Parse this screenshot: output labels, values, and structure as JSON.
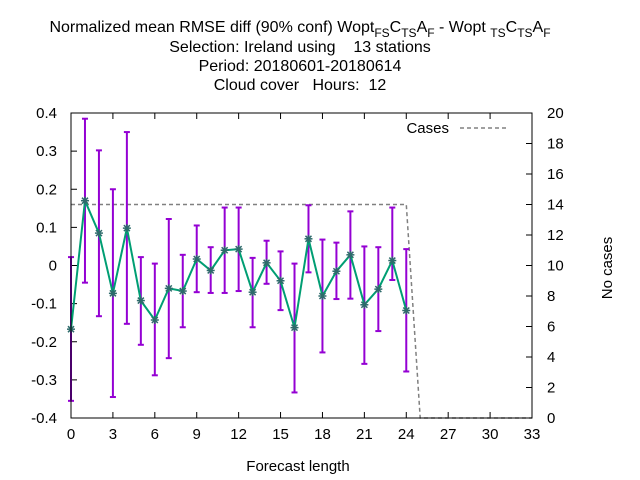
{
  "chart_data": {
    "type": "line",
    "title": {
      "line1_prefix": "Normalized mean RMSE diff (90% conf) Wopt",
      "sub1": "FS",
      "mid1": "C",
      "sub2": "TS",
      "mid2": "A",
      "sub3": "F",
      "line1_sep": " - Wopt ",
      "sub4": "TS",
      "mid3": "C",
      "sub5": "TS",
      "mid4": "A",
      "sub6": "F",
      "line2": "Selection: Ireland using    13 stations",
      "line3": "Period: 20180601-20180614",
      "line4": "Cloud cover   Hours:  12"
    },
    "xlabel": "Forecast length",
    "ylabel_right": "No cases",
    "xlim": [
      0,
      33
    ],
    "ylim": [
      -0.4,
      0.4
    ],
    "y2lim": [
      0,
      20
    ],
    "xticks": [
      "0",
      "3",
      "6",
      "9",
      "12",
      "15",
      "18",
      "21",
      "24",
      "27",
      "30",
      "33"
    ],
    "yticks": [
      "-0.4",
      "-0.3",
      "-0.2",
      "-0.1",
      "0",
      "0.1",
      "0.2",
      "0.3",
      "0.4"
    ],
    "y2ticks": [
      "0",
      "2",
      "4",
      "6",
      "8",
      "10",
      "12",
      "14",
      "16",
      "18",
      "20"
    ],
    "colors": {
      "line": "#009e73",
      "errorbar": "#9400d3",
      "cases": "#808080",
      "marker": "#2e6b6b"
    },
    "series": [
      {
        "x": [
          0,
          1,
          2,
          3,
          4,
          5,
          6,
          7,
          8,
          9,
          10,
          11,
          12,
          13,
          14,
          15,
          16,
          17,
          18,
          19,
          20,
          21,
          22,
          23,
          24
        ],
        "values": [
          -0.167,
          0.17,
          0.085,
          -0.073,
          0.098,
          -0.092,
          -0.143,
          -0.06,
          -0.067,
          0.017,
          -0.013,
          0.04,
          0.043,
          -0.07,
          0.007,
          -0.04,
          -0.163,
          0.07,
          -0.08,
          -0.015,
          0.028,
          -0.103,
          -0.062,
          0.013,
          -0.118
        ],
        "err_low": [
          -0.355,
          -0.045,
          -0.133,
          -0.345,
          -0.153,
          -0.208,
          -0.288,
          -0.243,
          -0.162,
          -0.07,
          -0.072,
          -0.072,
          -0.067,
          -0.162,
          -0.048,
          -0.117,
          -0.333,
          -0.018,
          -0.228,
          -0.088,
          -0.087,
          -0.258,
          -0.172,
          -0.038,
          -0.278
        ],
        "err_high": [
          0.022,
          0.385,
          0.302,
          0.2,
          0.35,
          0.022,
          0.005,
          0.122,
          0.028,
          0.105,
          0.048,
          0.152,
          0.152,
          0.02,
          0.065,
          0.037,
          0.005,
          0.158,
          0.068,
          0.06,
          0.142,
          0.05,
          0.048,
          0.152,
          0.043
        ]
      },
      {
        "name": "Cases",
        "axis": "right",
        "x": [
          0,
          24,
          25,
          33
        ],
        "values": [
          14,
          14,
          0,
          0
        ]
      }
    ],
    "legend": {
      "position": "top-right"
    }
  }
}
